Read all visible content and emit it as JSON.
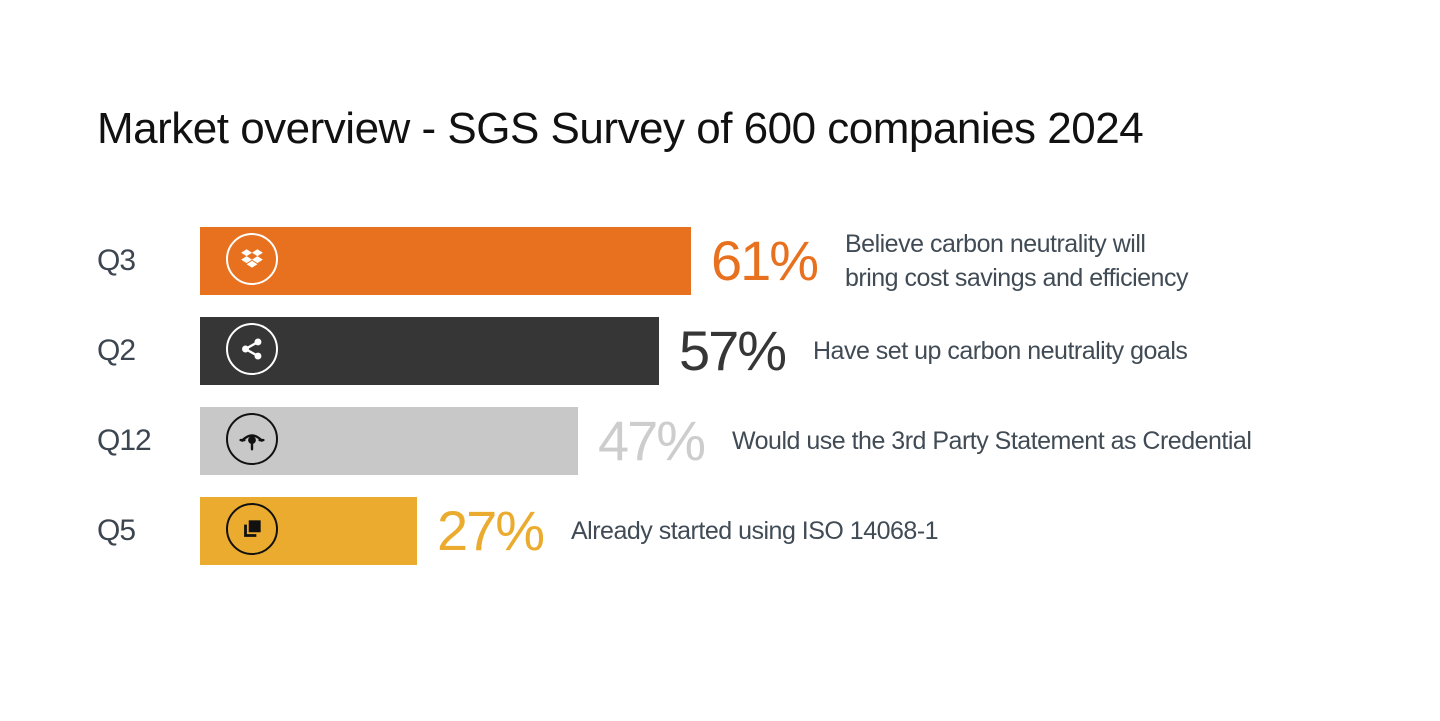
{
  "title": "Market overview - SGS Survey of 600 companies 2024",
  "chart_data": {
    "type": "bar",
    "orientation": "horizontal",
    "title": "Market overview - SGS Survey of 600 companies 2024",
    "xlim": [
      0,
      100
    ],
    "grid": false,
    "categories": [
      "Q3",
      "Q2",
      "Q12",
      "Q5"
    ],
    "values": [
      61,
      57,
      47,
      27
    ],
    "bars": [
      {
        "question": "Q3",
        "value": 61,
        "value_label": "61%",
        "description": [
          "Believe carbon neutrality will",
          "bring cost savings and efficiency"
        ],
        "bar_color": "#e8711f",
        "pct_color": "#e8711f",
        "icon": "dropbox-icon",
        "icon_style": "light"
      },
      {
        "question": "Q2",
        "value": 57,
        "value_label": "57%",
        "description": [
          "Have set up carbon neutrality goals"
        ],
        "bar_color": "#363636",
        "pct_color": "#363636",
        "icon": "share-icon",
        "icon_style": "light"
      },
      {
        "question": "Q12",
        "value": 47,
        "value_label": "47%",
        "description": [
          "Would use the 3rd Party Statement as Credential"
        ],
        "bar_color": "#c8c8c8",
        "pct_color": "#cdcdcd",
        "icon": "eye-target-icon",
        "icon_style": "dark"
      },
      {
        "question": "Q5",
        "value": 27,
        "value_label": "27%",
        "description": [
          "Already started using ISO 14068-1"
        ],
        "bar_color": "#eaab2e",
        "pct_color": "#eaab2e",
        "icon": "layers-icon",
        "icon_style": "dark"
      }
    ]
  }
}
